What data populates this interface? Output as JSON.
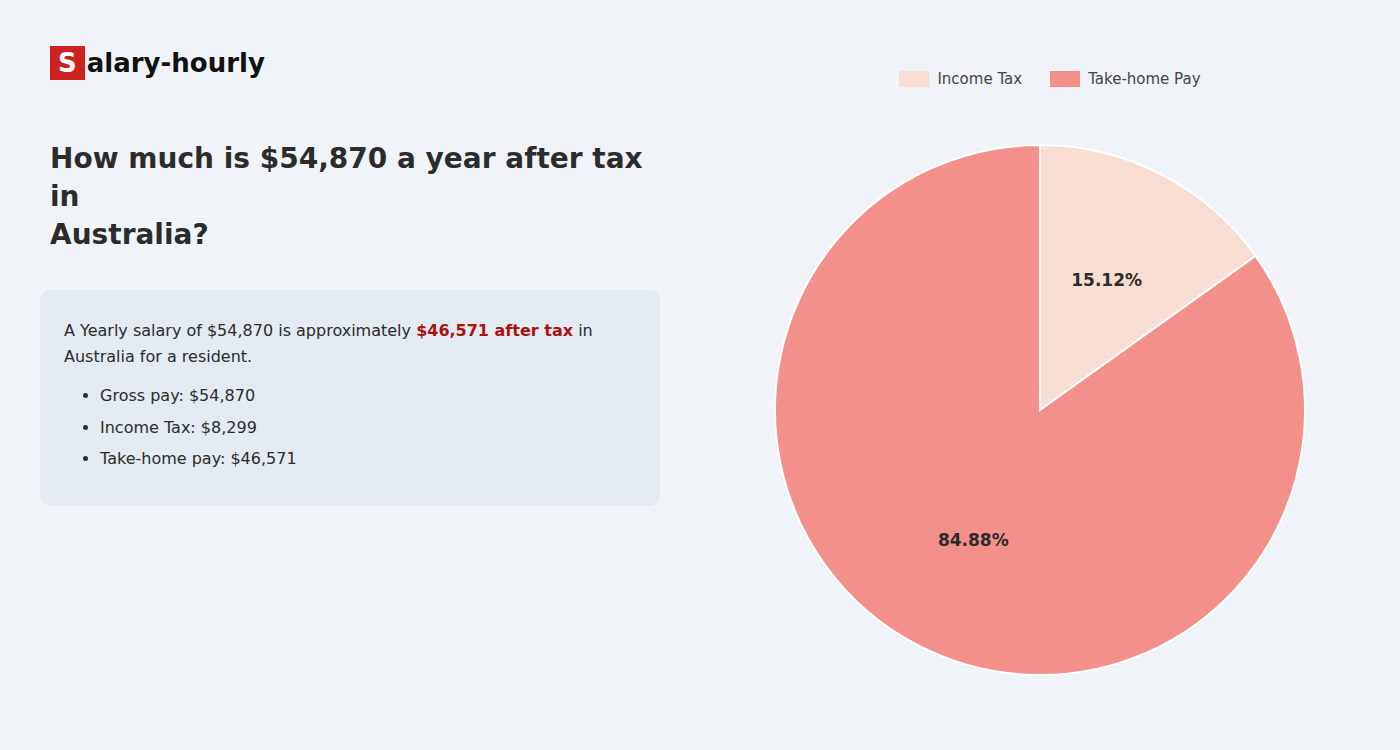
{
  "chart_data": {
    "type": "pie",
    "title": "How much is $54,870 a year after tax in\nAustralia?",
    "categories": [
      "Income Tax",
      "Take-home Pay"
    ],
    "values": [
      15.12,
      84.88
    ],
    "value_labels": [
      "15.12%",
      "84.88%"
    ],
    "colors": [
      "#f8ddd3",
      "#f4908a"
    ],
    "data_labels": true,
    "legend": "top",
    "annotations": [
      {
        "text": "S"
      },
      {
        "text": "alary-hourly"
      },
      {
        "text": "A Yearly salary of $54,870 is approximately "
      },
      {
        "text": "$46,571 after tax",
        "color": "#aa1111"
      },
      {
        "text": " in"
      },
      {
        "text": "Australia for a resident."
      },
      {
        "text": "Gross pay: $54,870"
      },
      {
        "text": "Income Tax: $8,299"
      },
      {
        "text": "Take-home pay: $46,571"
      }
    ]
  }
}
